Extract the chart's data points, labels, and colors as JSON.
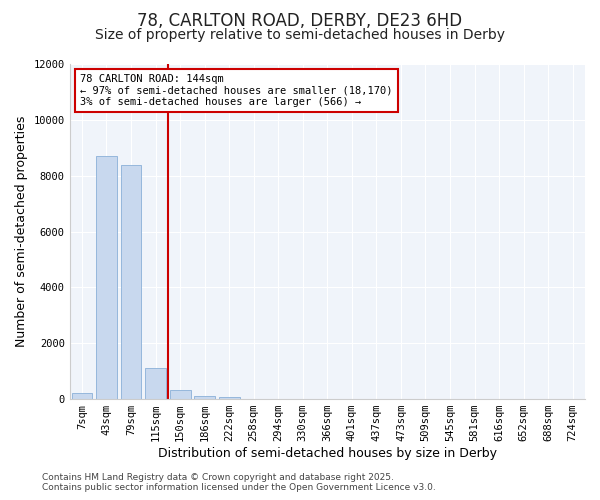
{
  "title": "78, CARLTON ROAD, DERBY, DE23 6HD",
  "subtitle": "Size of property relative to semi-detached houses in Derby",
  "xlabel": "Distribution of semi-detached houses by size in Derby",
  "ylabel": "Number of semi-detached properties",
  "categories": [
    "7sqm",
    "43sqm",
    "79sqm",
    "115sqm",
    "150sqm",
    "186sqm",
    "222sqm",
    "258sqm",
    "294sqm",
    "330sqm",
    "366sqm",
    "401sqm",
    "437sqm",
    "473sqm",
    "509sqm",
    "545sqm",
    "581sqm",
    "616sqm",
    "652sqm",
    "688sqm",
    "724sqm"
  ],
  "values": [
    200,
    8700,
    8400,
    1100,
    340,
    120,
    60,
    0,
    0,
    0,
    0,
    0,
    0,
    0,
    0,
    0,
    0,
    0,
    0,
    0,
    0
  ],
  "bar_color": "#c8d8ee",
  "bar_edge_color": "#8ab0d8",
  "vline_color": "#cc0000",
  "vline_pos": 4.0,
  "annotation_title": "78 CARLTON ROAD: 144sqm",
  "annotation_line2": "← 97% of semi-detached houses are smaller (18,170)",
  "annotation_line3": "3% of semi-detached houses are larger (566) →",
  "annotation_box_color": "#cc0000",
  "ylim": [
    0,
    12000
  ],
  "yticks": [
    0,
    2000,
    4000,
    6000,
    8000,
    10000,
    12000
  ],
  "bg_color": "#ffffff",
  "plot_bg_color": "#f0f4fa",
  "footer_line1": "Contains HM Land Registry data © Crown copyright and database right 2025.",
  "footer_line2": "Contains public sector information licensed under the Open Government Licence v3.0.",
  "title_fontsize": 12,
  "subtitle_fontsize": 10,
  "axis_label_fontsize": 9,
  "tick_fontsize": 7.5,
  "footer_fontsize": 6.5
}
